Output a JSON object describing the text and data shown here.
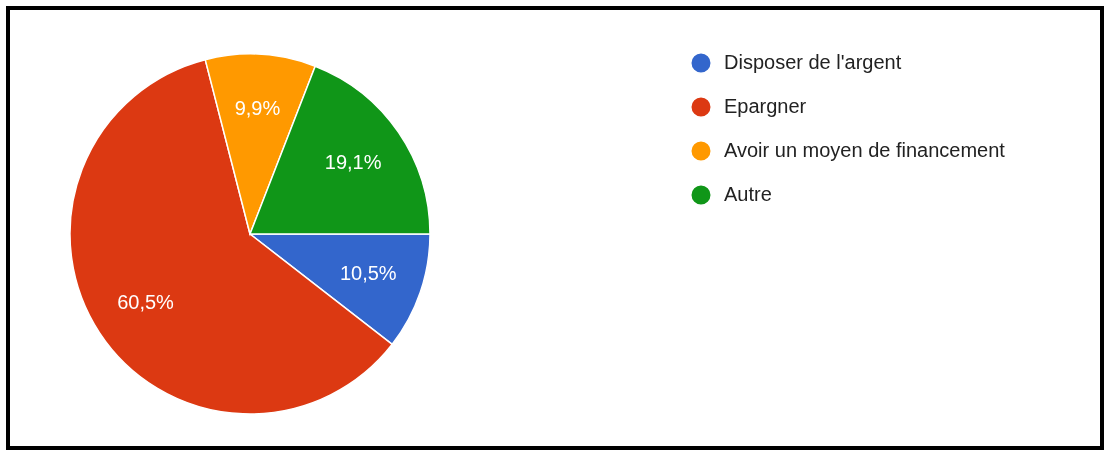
{
  "chart_data": {
    "type": "pie",
    "categories": [
      "Disposer de l'argent",
      "Epargner",
      "Avoir un moyen de financement",
      "Autre"
    ],
    "values": [
      10.5,
      60.5,
      9.9,
      19.1
    ],
    "colors": [
      "#3366cc",
      "#dc3912",
      "#ff9900",
      "#109618"
    ],
    "value_labels": [
      "10,5%",
      "60,5%",
      "9,9%",
      "19,1%"
    ],
    "legend": "top right"
  }
}
